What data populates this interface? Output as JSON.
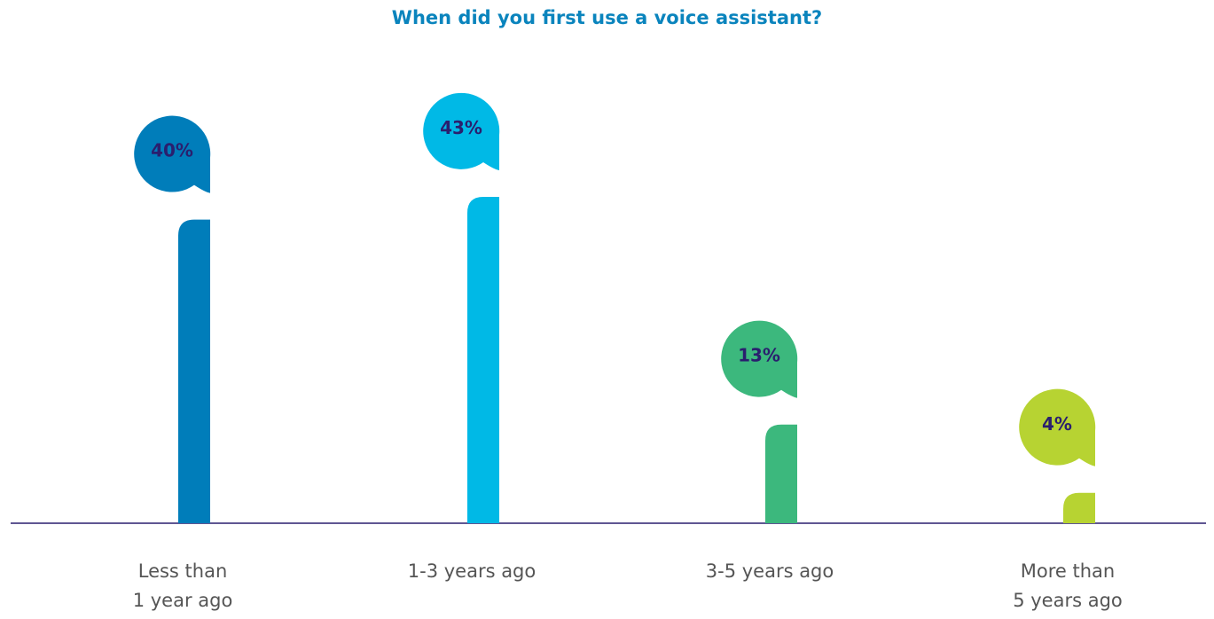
{
  "chart_data": {
    "type": "bar",
    "title": "When did you first use a voice assistant?",
    "categories": [
      [
        "Less than",
        "1 year ago"
      ],
      [
        "1-3 years ago"
      ],
      [
        "3-5 years ago"
      ],
      [
        "More than",
        "5 years ago"
      ]
    ],
    "values": [
      40,
      43,
      13,
      4
    ],
    "value_labels": [
      "40%",
      "43%",
      "13%",
      "4%"
    ],
    "unit": "%",
    "ylim": [
      0,
      43
    ],
    "grid": false,
    "legend": "none",
    "xlabel": "",
    "ylabel": ""
  },
  "colors": {
    "title": "#0a84bd",
    "axis": "#2a1f6e",
    "bars": [
      "#007dba",
      "#00b9e6",
      "#3cb87d",
      "#b7d332"
    ]
  }
}
